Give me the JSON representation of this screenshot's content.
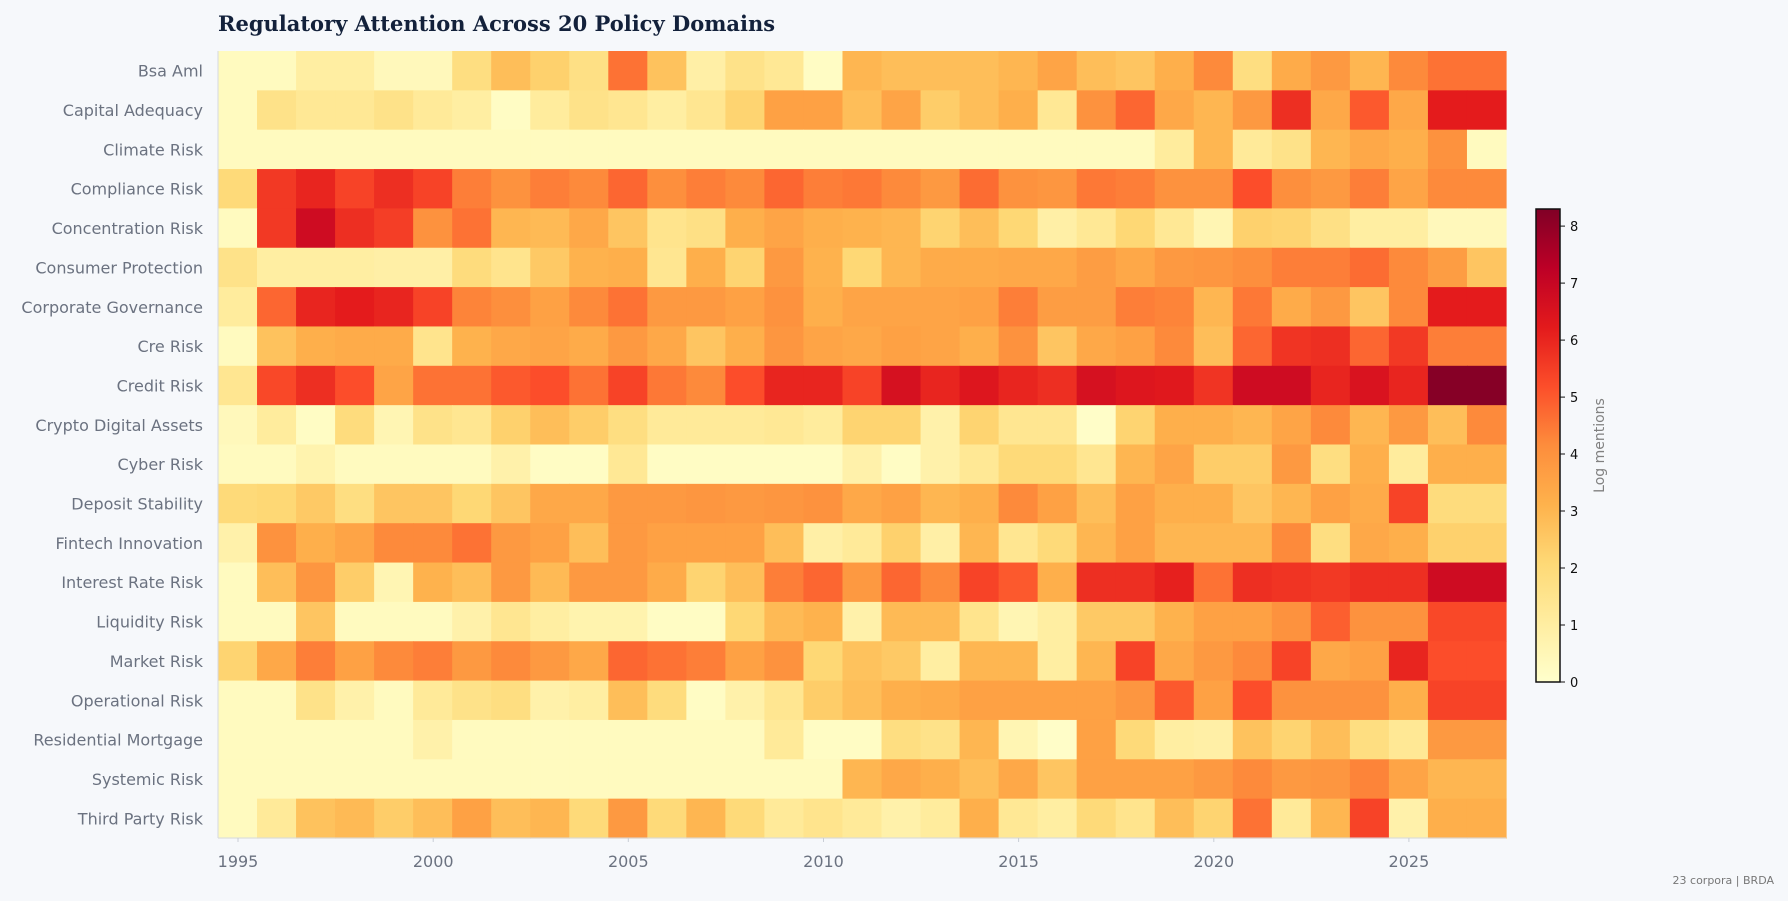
{
  "chart_data": {
    "type": "heatmap",
    "title": "Regulatory Attention Across 20 Policy Domains",
    "rows": [
      "Bsa Aml",
      "Capital Adequacy",
      "Climate Risk",
      "Compliance Risk",
      "Concentration Risk",
      "Consumer Protection",
      "Corporate Governance",
      "Cre Risk",
      "Credit Risk",
      "Crypto Digital Assets",
      "Cyber Risk",
      "Deposit Stability",
      "Fintech Innovation",
      "Interest Rate Risk",
      "Liquidity Risk",
      "Market Risk",
      "Operational Risk",
      "Residential Mortgage",
      "Systemic Risk",
      "Third Party Risk"
    ],
    "x_start": 1995,
    "x_end": 2026,
    "x_ticks": [
      "1995",
      "2000",
      "2005",
      "2010",
      "2015",
      "2020",
      "2025"
    ],
    "values": [
      [
        0.3,
        0.3,
        1,
        1,
        0.4,
        0.4,
        1.8,
        2.8,
        2.3,
        1.7,
        4.6,
        2.7,
        0.9,
        1.6,
        1.3,
        0.2,
        3,
        2.8,
        2.8,
        2.8,
        3,
        3.5,
        2.8,
        2.6,
        3.2,
        4.2,
        1.8,
        3.3,
        3.8,
        3,
        4.2,
        4.6,
        4.6
      ],
      [
        0.3,
        1.6,
        1.3,
        1.3,
        1.6,
        1.2,
        1,
        0.2,
        1.1,
        1.6,
        1.4,
        1,
        1.4,
        2.2,
        3.6,
        3.6,
        2.8,
        3.5,
        2.4,
        2.8,
        3.2,
        1.3,
        4,
        4.8,
        3.4,
        3,
        3.8,
        5.8,
        3.4,
        5,
        3.4,
        6.2,
        6.2
      ],
      [
        0.3,
        0.3,
        0.3,
        0.3,
        0.3,
        0.3,
        0.3,
        0.3,
        0.3,
        0.3,
        0.3,
        0.3,
        0.3,
        0.3,
        0.3,
        0.3,
        0.3,
        0.3,
        0.3,
        0.3,
        0.3,
        0.3,
        0.3,
        0.3,
        1.1,
        3,
        1.2,
        1.6,
        3,
        3.4,
        3.2,
        4,
        0.3
      ],
      [
        2,
        5.6,
        6,
        5.4,
        5.8,
        5.4,
        4.4,
        4,
        4.4,
        4.2,
        4.8,
        4.1,
        4.4,
        4.2,
        4.8,
        4.4,
        4.5,
        4.2,
        3.8,
        4.7,
        4,
        3.9,
        4.5,
        4.4,
        4,
        4,
        5.2,
        4.1,
        3.8,
        4.4,
        3.5,
        4.2,
        4.2
      ],
      [
        0.3,
        5.6,
        6.8,
        5.8,
        5.5,
        4,
        4.6,
        3,
        2.9,
        3.4,
        2.6,
        1.5,
        1.7,
        3.2,
        3.5,
        3.2,
        3.1,
        3,
        2.2,
        2.8,
        2.1,
        0.9,
        1.3,
        2.1,
        1.3,
        0.6,
        2.3,
        2.2,
        1.7,
        1,
        1,
        0.4,
        0.4
      ],
      [
        1.6,
        1,
        1,
        1,
        0.9,
        0.9,
        1.9,
        1.5,
        2.5,
        3.1,
        3.2,
        1.4,
        3.2,
        2.2,
        3.8,
        3.1,
        2.1,
        3,
        3.3,
        3.3,
        3.4,
        3.4,
        3.7,
        3.4,
        3.8,
        3.9,
        4.1,
        4.4,
        4.4,
        4.7,
        4.2,
        3.7,
        2.6
      ],
      [
        1.1,
        4.8,
        6,
        6.2,
        6,
        5.4,
        4.3,
        4.1,
        3.6,
        4.2,
        4.6,
        3.8,
        3.8,
        3.6,
        4,
        3.2,
        3.5,
        3.5,
        3.5,
        3.6,
        4.4,
        3.7,
        3.7,
        4.4,
        4.3,
        3,
        4.5,
        3.3,
        3.8,
        2.6,
        4.2,
        6.2,
        6.2
      ],
      [
        0.3,
        2.7,
        3.2,
        3.3,
        3.3,
        1.5,
        3.1,
        3.4,
        3.5,
        3.3,
        3.8,
        3.4,
        2.6,
        3.2,
        3.9,
        3.5,
        3.4,
        3.6,
        3.5,
        3.2,
        4,
        2.6,
        3.4,
        3.6,
        4.2,
        2.8,
        4.8,
        5.7,
        5.8,
        4.8,
        5.6,
        4.4,
        4.4
      ],
      [
        1.4,
        5.3,
        5.8,
        5.2,
        3.5,
        4.6,
        4.6,
        5,
        5.2,
        4.6,
        5.4,
        4.5,
        4.2,
        5.2,
        6,
        6,
        5.4,
        6.6,
        6,
        6.4,
        6,
        5.8,
        6.6,
        6.4,
        6.3,
        5.7,
        6.8,
        6.8,
        6,
        6.5,
        6,
        8.2,
        8.2
      ],
      [
        0.4,
        1.1,
        0.2,
        1.9,
        0.6,
        1.6,
        1.4,
        2.3,
        2.8,
        2.4,
        1.8,
        1.2,
        1.2,
        1.2,
        1.3,
        1.1,
        2.2,
        2.2,
        0.8,
        2.2,
        1.4,
        1.4,
        0.1,
        2.2,
        3.2,
        3.2,
        3,
        3.5,
        4.2,
        3,
        3.8,
        2.8,
        4.2
      ],
      [
        0.3,
        0.3,
        0.7,
        0.3,
        0.3,
        0.3,
        0.3,
        0.8,
        0.2,
        0.2,
        1.3,
        0.2,
        0.2,
        0.2,
        0.2,
        0.2,
        0.8,
        0.2,
        0.8,
        1.3,
        2,
        2,
        1.4,
        3,
        3.5,
        2.4,
        2.4,
        3.8,
        1.8,
        3.2,
        1.1,
        3.2,
        3.2
      ],
      [
        2,
        2.1,
        2.5,
        1.8,
        2.6,
        2.6,
        2.1,
        2.6,
        3.4,
        3.4,
        3.8,
        3.8,
        3.9,
        3.8,
        3.9,
        4,
        3.4,
        3.6,
        3,
        3.2,
        4.2,
        3.6,
        2.8,
        3.6,
        3.2,
        3.2,
        2.6,
        3,
        3.6,
        3.3,
        5.4,
        1.9,
        1.9
      ],
      [
        0.8,
        4,
        3.2,
        3.5,
        4.2,
        4.2,
        4.6,
        3.8,
        3.6,
        2.8,
        3.8,
        3.6,
        3.6,
        3.6,
        2.8,
        0.9,
        1.2,
        2.3,
        0.9,
        3,
        1.4,
        2,
        3,
        3.6,
        3,
        3,
        3,
        4.2,
        1.8,
        3.4,
        3.2,
        2.3,
        2.3
      ],
      [
        0.3,
        2.8,
        3.9,
        2.4,
        0.6,
        3.1,
        2.8,
        3.8,
        2.9,
        3.8,
        3.8,
        3.3,
        2.2,
        2.8,
        4.4,
        4.8,
        3.8,
        4.8,
        4.2,
        5.4,
        5,
        3.2,
        5.8,
        5.8,
        6.1,
        4.6,
        5.8,
        5.7,
        5.6,
        5.8,
        5.8,
        6.8,
        6.8
      ],
      [
        0.3,
        0.3,
        2.6,
        0.3,
        0.3,
        0.3,
        0.8,
        1.4,
        1,
        0.7,
        0.7,
        0.2,
        0.2,
        2.1,
        2.9,
        3.1,
        0.8,
        2.9,
        2.9,
        1.5,
        0.6,
        1,
        2.5,
        2.5,
        3.1,
        3.6,
        3.6,
        4,
        4.9,
        4,
        4,
        5.3,
        5.3
      ],
      [
        2.2,
        3.4,
        4.4,
        3.6,
        4.2,
        4.4,
        3.8,
        4.2,
        3.8,
        3.4,
        4.8,
        4.6,
        4.4,
        3.6,
        4,
        2.1,
        2.7,
        2.5,
        1,
        3,
        3,
        1,
        3,
        5.4,
        3.4,
        3.8,
        4.2,
        5.4,
        3.4,
        3.6,
        6,
        5.2,
        5.2
      ],
      [
        0.3,
        0.3,
        1.6,
        0.8,
        0.3,
        1.2,
        1.6,
        1.8,
        0.8,
        1,
        2.8,
        1.9,
        0.2,
        0.8,
        1.4,
        2.4,
        2.8,
        3.2,
        3.3,
        3.6,
        3.6,
        3.6,
        3.6,
        3.9,
        5,
        3.6,
        5.2,
        4,
        4,
        4,
        3.2,
        5.4,
        5.4
      ],
      [
        0.3,
        0.3,
        0.3,
        0.3,
        0.3,
        0.8,
        0.3,
        0.3,
        0.3,
        0.3,
        0.3,
        0.3,
        0.3,
        0.3,
        1.2,
        0.2,
        0.2,
        1.8,
        1.6,
        3,
        0.6,
        0.1,
        3.6,
        2,
        1,
        0.9,
        2.7,
        2.2,
        2.8,
        1.8,
        1.3,
        3.8,
        3.8
      ],
      [
        0.3,
        0.3,
        0.3,
        0.3,
        0.3,
        0.3,
        0.3,
        0.3,
        0.3,
        0.3,
        0.3,
        0.3,
        0.3,
        0.3,
        0.3,
        0.3,
        3,
        3.4,
        3.2,
        2.8,
        3.4,
        2.6,
        3.6,
        3.6,
        3.6,
        3.8,
        4.2,
        3.8,
        3.9,
        4.3,
        3.5,
        3,
        3
      ],
      [
        0.3,
        1.2,
        2.7,
        2.9,
        2.4,
        2.8,
        3.6,
        2.8,
        3,
        2,
        3.8,
        2,
        3,
        2,
        1.2,
        1.5,
        1.2,
        0.8,
        1.1,
        3.2,
        1.3,
        1,
        2,
        1.5,
        2.8,
        2.2,
        4.6,
        1.2,
        3,
        5.4,
        0.8,
        3.2,
        3.2
      ]
    ],
    "colorscale": "YlOrRd",
    "vmin": 0,
    "vmax": 8.3,
    "colorbar": {
      "label": "Log mentions",
      "ticks": [
        "0",
        "1",
        "2",
        "3",
        "4",
        "5",
        "6",
        "7",
        "8"
      ]
    },
    "footnote": "23 corpora | BRDA",
    "colors": {
      "stops": [
        "#ffffcc",
        "#ffeda0",
        "#fed976",
        "#feb24c",
        "#fd8d3c",
        "#fc4e2a",
        "#e31a1c",
        "#bd0026",
        "#800026"
      ]
    }
  }
}
